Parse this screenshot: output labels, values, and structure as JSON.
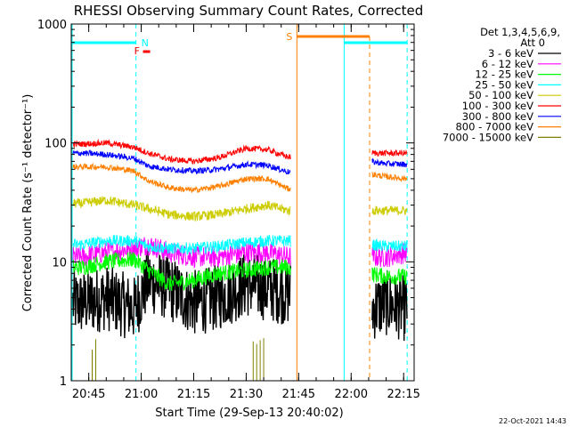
{
  "chart_data": {
    "type": "line",
    "title": "RHESSI Observing Summary Count Rates, Corrected",
    "xlabel": "Start Time (29-Sep-13 20:40:02)",
    "ylabel": "Corrected Count Rate (s⁻¹ detector⁻¹)",
    "y_scale": "log",
    "ylim": [
      1,
      1000
    ],
    "xlim": [
      "20:40",
      "22:18"
    ],
    "x_ticks": [
      "20:45",
      "21:00",
      "21:15",
      "21:30",
      "21:45",
      "22:00",
      "22:15"
    ],
    "y_ticks": [
      "1",
      "10",
      "100",
      "1000"
    ],
    "legend": {
      "header": [
        "Det 1,3,4,5,6,9,",
        "Att 0"
      ],
      "position": "top-right"
    },
    "series": [
      {
        "name": "3 - 6 keV",
        "color": "#000000",
        "x": [
          "20:43",
          "20:50",
          "20:58",
          "21:02",
          "21:08",
          "21:15",
          "21:22",
          "21:30",
          "21:36",
          "21:42",
          "22:05",
          "22:10",
          "22:16"
        ],
        "values": [
          4.5,
          5.0,
          4.0,
          7.0,
          6.0,
          4.5,
          5.0,
          6.5,
          6.0,
          5.5,
          4.0,
          4.5,
          4.0
        ]
      },
      {
        "name": "6 - 12 keV",
        "color": "#ff00ff",
        "x": [
          "20:43",
          "20:50",
          "20:58",
          "21:02",
          "21:08",
          "21:15",
          "21:22",
          "21:30",
          "21:36",
          "21:42",
          "22:05",
          "22:10",
          "22:16"
        ],
        "values": [
          11,
          12,
          13,
          14,
          12,
          11,
          11,
          12,
          12,
          11,
          11,
          11,
          12
        ]
      },
      {
        "name": "12 - 25 keV",
        "color": "#00ff00",
        "x": [
          "20:43",
          "20:50",
          "20:58",
          "21:02",
          "21:08",
          "21:15",
          "21:22",
          "21:30",
          "21:36",
          "21:42",
          "22:05",
          "22:10",
          "22:16"
        ],
        "values": [
          9,
          10,
          10.5,
          8.5,
          6.5,
          7,
          8,
          8.5,
          9,
          9,
          8,
          7.5,
          7.5
        ]
      },
      {
        "name": "25 - 50 keV",
        "color": "#00ffff",
        "x": [
          "20:43",
          "20:50",
          "20:58",
          "21:02",
          "21:08",
          "21:15",
          "21:22",
          "21:30",
          "21:36",
          "21:42",
          "22:05",
          "22:10",
          "22:16"
        ],
        "values": [
          14,
          15,
          15,
          13.5,
          13,
          13,
          13.5,
          14.5,
          15,
          15,
          14,
          13.5,
          13.5
        ]
      },
      {
        "name": "50 - 100 keV",
        "color": "#cccc00",
        "x": [
          "20:43",
          "20:50",
          "20:58",
          "21:02",
          "21:08",
          "21:15",
          "21:22",
          "21:30",
          "21:36",
          "21:42",
          "22:05",
          "22:10",
          "22:16"
        ],
        "values": [
          31,
          33,
          30,
          28,
          25,
          24,
          25,
          28,
          30,
          27,
          27,
          27,
          27
        ]
      },
      {
        "name": "100 - 300 keV",
        "color": "#ff0000",
        "x": [
          "20:43",
          "20:50",
          "20:58",
          "21:02",
          "21:08",
          "21:15",
          "21:22",
          "21:30",
          "21:36",
          "21:42",
          "22:05",
          "22:10",
          "22:16"
        ],
        "values": [
          98,
          100,
          92,
          82,
          73,
          70,
          75,
          90,
          88,
          76,
          82,
          82,
          82
        ]
      },
      {
        "name": "300 - 800 keV",
        "color": "#0000ff",
        "x": [
          "20:43",
          "20:50",
          "20:58",
          "21:02",
          "21:08",
          "21:15",
          "21:22",
          "21:30",
          "21:36",
          "21:42",
          "22:05",
          "22:10",
          "22:16"
        ],
        "values": [
          82,
          80,
          74,
          64,
          60,
          58,
          60,
          66,
          65,
          57,
          70,
          67,
          66
        ]
      },
      {
        "name": "800 - 7000 keV",
        "color": "#ff8000",
        "x": [
          "20:43",
          "20:50",
          "20:58",
          "21:02",
          "21:08",
          "21:15",
          "21:22",
          "21:30",
          "21:36",
          "21:42",
          "22:05",
          "22:10",
          "22:16"
        ],
        "values": [
          63,
          63,
          58,
          48,
          42,
          40,
          43,
          50,
          50,
          41,
          55,
          52,
          50
        ]
      },
      {
        "name": "7000 - 15000 keV",
        "color": "#808000",
        "x": [
          "20:43",
          "20:50",
          "20:58",
          "21:02",
          "21:08",
          "21:15",
          "21:22",
          "21:30",
          "21:36",
          "21:42",
          "22:05",
          "22:10",
          "22:16"
        ],
        "values": [
          1,
          1,
          1,
          1,
          1,
          1,
          1,
          1,
          1,
          1,
          1,
          1,
          1
        ]
      }
    ],
    "flags": [
      {
        "label": "N",
        "color": "#00ffff",
        "at": "20:59"
      },
      {
        "label": "F",
        "color": "#ff0000",
        "at": "21:00"
      },
      {
        "label": "S",
        "color": "#ff8000",
        "at": "21:45"
      }
    ],
    "timestamp": "22-Oct-2021 14:43"
  }
}
